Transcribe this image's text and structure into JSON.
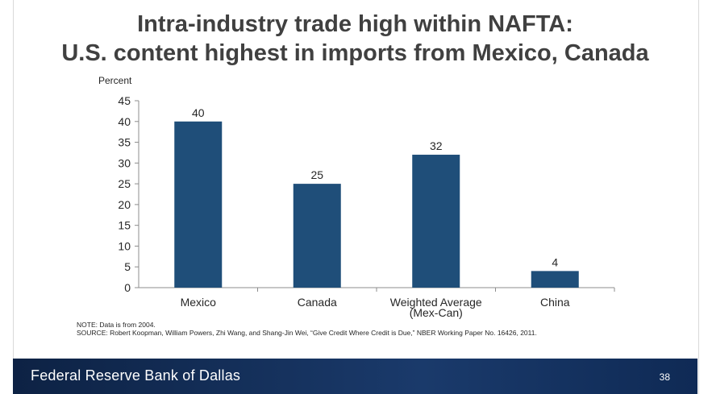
{
  "slide": {
    "title_line1": "Intra-industry trade high within NAFTA:",
    "title_line2": "U.S. content highest in imports from Mexico, Canada",
    "note": "NOTE: Data is from 2004.",
    "source": "SOURCE: Robert Koopman, William Powers, Zhi Wang, and Shang-Jin Wei, “Give Credit Where Credit is Due,” NBER Working Paper No. 16426, 2011.",
    "footer_org": "Federal Reserve Bank of Dallas",
    "page_number": "38",
    "bar_color": "#1f4e79",
    "footer_color": "#13305c"
  },
  "chart_data": {
    "type": "bar",
    "categories": [
      "Mexico",
      "Canada",
      "Weighted Average\n(Mex-Can)",
      "China"
    ],
    "values": [
      40,
      25,
      32,
      4
    ],
    "data_labels": [
      "40",
      "25",
      "32",
      "4"
    ],
    "title": "",
    "xlabel": "",
    "ylabel": "Percent",
    "ylim": [
      0,
      45
    ],
    "yticks": [
      0,
      5,
      10,
      15,
      20,
      25,
      30,
      35,
      40,
      45
    ],
    "grid": false,
    "legend": "none"
  }
}
